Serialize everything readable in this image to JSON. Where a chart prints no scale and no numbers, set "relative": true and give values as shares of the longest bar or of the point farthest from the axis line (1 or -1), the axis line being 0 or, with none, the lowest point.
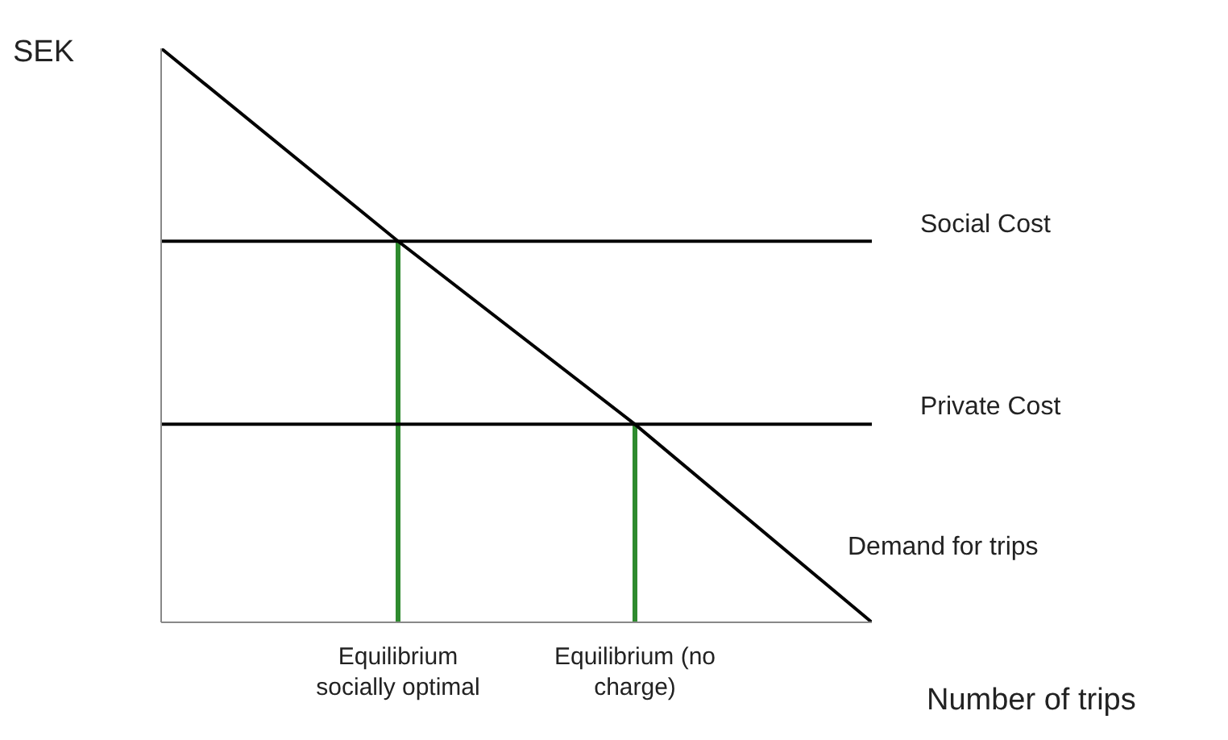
{
  "chart_data": {
    "type": "line",
    "relative": true,
    "ylabel": "SEK",
    "xlabel": "Number of trips",
    "categories": [
      null,
      "Equilibrium socially optimal",
      "Equilibrium (no charge)",
      null
    ],
    "marker": "none",
    "line_style": "solid",
    "series": [
      {
        "name": "Social Cost",
        "color": "#000000",
        "values": [
          0.664,
          0.664,
          0.664,
          0.664
        ]
      },
      {
        "name": "Private Cost",
        "color": "#000000",
        "values": [
          0.345,
          0.345,
          0.345,
          0.345
        ]
      },
      {
        "name": "Demand for trips",
        "color": "#000000",
        "values": [
          1,
          0.664,
          0.345,
          0
        ]
      },
      {
        "type": "bar",
        "color": "#2e8b2e",
        "values": [
          null,
          0.664,
          0.345,
          null
        ]
      }
    ]
  }
}
